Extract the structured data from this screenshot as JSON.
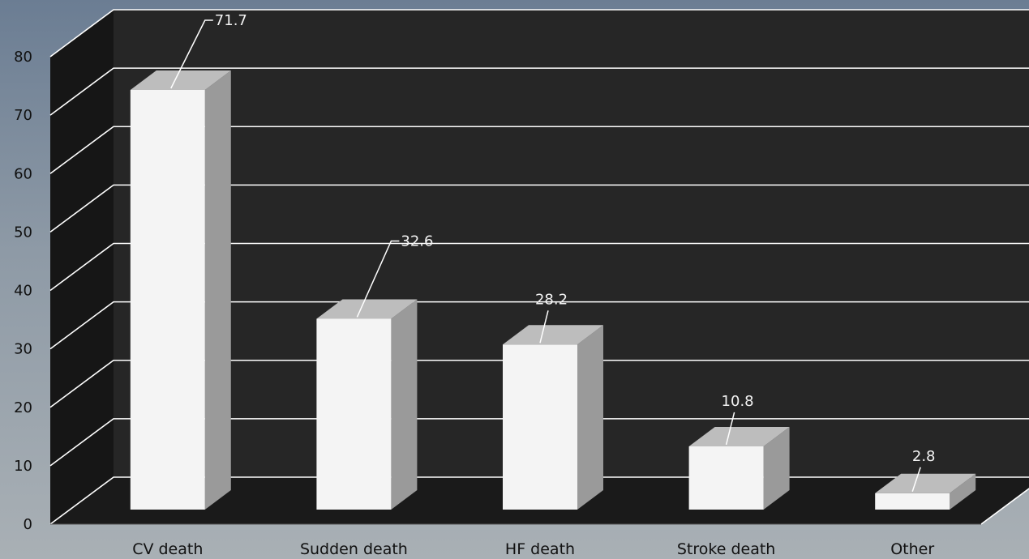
{
  "chart_data": {
    "type": "bar",
    "style": "3d-column",
    "categories": [
      "CV death",
      "Sudden death",
      "HF death",
      "Stroke death",
      "Other"
    ],
    "values": [
      71.7,
      32.6,
      28.2,
      10.8,
      2.8
    ],
    "data_labels": [
      "71.7",
      "32.6",
      "28.2",
      "10.8",
      "2.8"
    ],
    "yticks": [
      "0",
      "10",
      "20",
      "30",
      "40",
      "50",
      "60",
      "70",
      "80"
    ],
    "ylim": [
      0,
      80
    ],
    "grid": true,
    "legend": "none",
    "colors": {
      "wall": "#262626",
      "side_wall": "#161616",
      "floor": "#1a1a1a",
      "grid": "#ffffff",
      "bar_front": "#f4f4f4",
      "bar_top": "#bdbdbd",
      "bar_side": "#9a9a9a",
      "label": "#f2f2f2"
    }
  }
}
